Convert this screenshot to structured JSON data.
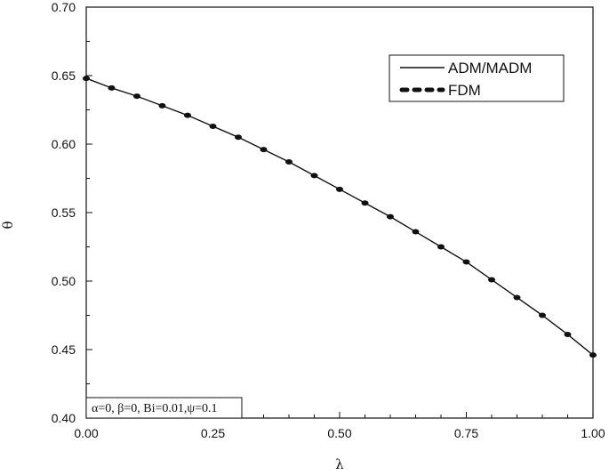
{
  "chart_data": {
    "type": "line",
    "xlabel": "λ",
    "ylabel": "θ",
    "xlim": [
      0,
      1
    ],
    "ylim": [
      0.4,
      0.7
    ],
    "xticks": [
      "0.00",
      "0.25",
      "0.50",
      "0.75",
      "1.00"
    ],
    "yticks": [
      "0.40",
      "0.45",
      "0.50",
      "0.55",
      "0.60",
      "0.65",
      "0.70"
    ],
    "grid": false,
    "legend_position": "top-right",
    "series": [
      {
        "name": "ADM/MADM",
        "style": "solid-line",
        "color": "#111111",
        "x": [
          0.0,
          0.05,
          0.1,
          0.15,
          0.2,
          0.25,
          0.3,
          0.35,
          0.4,
          0.45,
          0.5,
          0.55,
          0.6,
          0.65,
          0.7,
          0.75,
          0.8,
          0.85,
          0.9,
          0.95,
          1.0
        ],
        "y": [
          0.648,
          0.641,
          0.635,
          0.628,
          0.621,
          0.613,
          0.605,
          0.596,
          0.587,
          0.577,
          0.567,
          0.557,
          0.547,
          0.536,
          0.525,
          0.514,
          0.501,
          0.488,
          0.475,
          0.461,
          0.446
        ]
      },
      {
        "name": "FDM",
        "style": "dots",
        "color": "#111111",
        "x": [
          0.0,
          0.05,
          0.1,
          0.15,
          0.2,
          0.25,
          0.3,
          0.35,
          0.4,
          0.45,
          0.5,
          0.55,
          0.6,
          0.65,
          0.7,
          0.75,
          0.8,
          0.85,
          0.9,
          0.95,
          1.0
        ],
        "y": [
          0.648,
          0.641,
          0.635,
          0.628,
          0.621,
          0.613,
          0.605,
          0.596,
          0.587,
          0.577,
          0.567,
          0.557,
          0.547,
          0.536,
          0.525,
          0.514,
          0.501,
          0.488,
          0.475,
          0.461,
          0.446
        ]
      }
    ],
    "annotation": "α=0, β=0, Bi=0.01,ψ=0.1"
  }
}
